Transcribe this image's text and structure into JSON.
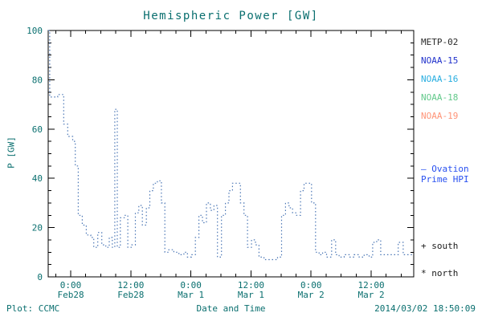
{
  "title": "Hemispheric Power [GW]",
  "axes": {
    "xlabel": "Date and Time",
    "ylabel": "P [GW]"
  },
  "footer": {
    "left": "Plot: CCMC",
    "right": "2014/03/02 18:50:09"
  },
  "legend": {
    "satellites": [
      {
        "label": "METP-02",
        "color": "#2a2a2a"
      },
      {
        "label": "NOAA-15",
        "color": "#2233cc"
      },
      {
        "label": "NOAA-16",
        "color": "#29aee0"
      },
      {
        "label": "NOAA-18",
        "color": "#63c98b"
      },
      {
        "label": "NOAA-19",
        "color": "#ff9478"
      }
    ],
    "ovation": {
      "sample": "—",
      "line1": "Ovation",
      "line2": "Prime HPI",
      "color": "#2850f0"
    },
    "south": {
      "symbol": "+",
      "label": "south",
      "color": "#1a1a1a"
    },
    "north": {
      "symbol": "*",
      "label": "north",
      "color": "#1a1a1a"
    }
  },
  "colors": {
    "background": "#ffffff",
    "frame": "#000000",
    "text": "#0a6f6f",
    "line": "#4a76b5"
  },
  "chart_data": {
    "type": "line",
    "style": "dotted-step",
    "title": "Hemispheric Power [GW]",
    "xlabel": "Date and Time",
    "ylabel": "P [GW]",
    "ylim": [
      0,
      100
    ],
    "xlim_hours": [
      -4.5,
      68.5
    ],
    "x_unit": "hours since 2014-02-28 00:00",
    "grid": false,
    "legend_position": "right",
    "y_ticks": [
      0,
      20,
      40,
      60,
      80,
      100
    ],
    "y_minor_step": 5,
    "x_minor_step": 3,
    "x_ticks": [
      {
        "h": 0,
        "time": "0:00",
        "date": "Feb28"
      },
      {
        "h": 12,
        "time": "12:00",
        "date": "Feb28"
      },
      {
        "h": 24,
        "time": "0:00",
        "date": "Mar 1"
      },
      {
        "h": 36,
        "time": "12:00",
        "date": "Mar 1"
      },
      {
        "h": 48,
        "time": "0:00",
        "date": "Mar 2"
      },
      {
        "h": 60,
        "time": "12:00",
        "date": "Mar 2"
      }
    ],
    "series": [
      {
        "name": "Ovation Prime HPI",
        "color": "#4a76b5",
        "x": [
          -4.5,
          -4.2,
          -2.6,
          -1.4,
          -0.6,
          0.4,
          0.9,
          1.5,
          2.3,
          3.1,
          4.0,
          4.6,
          5.4,
          6.2,
          7.0,
          7.7,
          8.3,
          8.8,
          9.3,
          9.9,
          10.7,
          11.4,
          12.2,
          12.9,
          13.6,
          14.3,
          15.1,
          15.8,
          16.5,
          17.3,
          18.1,
          18.8,
          19.6,
          20.6,
          21.6,
          22.6,
          23.3,
          24.1,
          24.9,
          25.6,
          26.3,
          27.1,
          27.9,
          28.6,
          29.3,
          30.1,
          30.9,
          31.6,
          32.3,
          33.1,
          33.9,
          34.6,
          35.3,
          36.1,
          36.9,
          37.6,
          38.6,
          39.6,
          40.6,
          41.3,
          42.1,
          42.9,
          43.6,
          44.3,
          45.1,
          45.9,
          46.6,
          47.3,
          48.1,
          48.9,
          49.6,
          50.3,
          51.1,
          52.1,
          52.9,
          53.6,
          54.6,
          55.6,
          56.6,
          57.6,
          58.6,
          59.6,
          60.3,
          61.1,
          61.9,
          62.6,
          63.6,
          64.6,
          65.4,
          66.4
        ],
        "y": [
          100,
          73,
          74,
          62,
          57,
          55,
          45,
          25,
          21,
          17,
          16,
          12,
          18,
          13,
          12,
          16,
          12,
          68,
          12,
          24,
          25,
          12,
          13,
          26,
          29,
          21,
          28,
          35,
          38,
          39,
          30,
          10,
          11,
          10,
          9,
          10,
          8,
          9,
          16,
          25,
          22,
          30,
          27,
          29,
          8,
          25,
          30,
          35,
          38,
          38,
          30,
          25,
          12,
          15,
          13,
          8,
          7,
          7,
          7,
          8,
          25,
          30,
          28,
          26,
          25,
          35,
          38,
          38,
          30,
          10,
          9,
          10,
          8,
          15,
          9,
          8,
          9,
          8,
          9,
          8,
          9,
          8,
          14,
          15,
          9,
          9,
          9,
          9,
          14,
          9
        ]
      }
    ]
  }
}
